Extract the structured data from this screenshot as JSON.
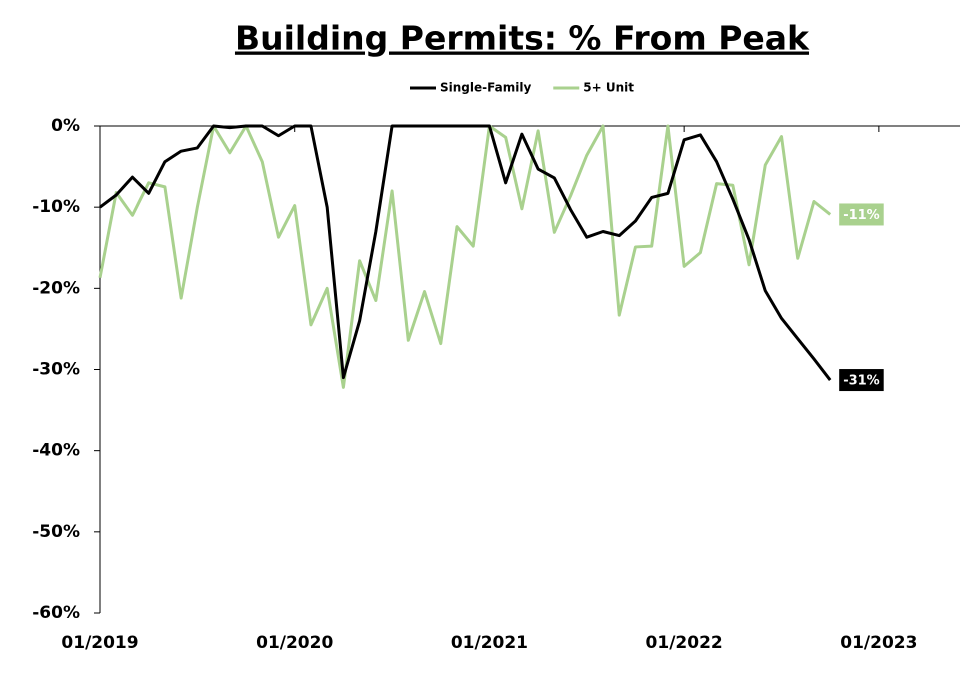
{
  "chart_data": {
    "type": "line",
    "title": "Building Permits: % From Peak",
    "x": [
      "01/2019",
      "02/2019",
      "03/2019",
      "04/2019",
      "05/2019",
      "06/2019",
      "07/2019",
      "08/2019",
      "09/2019",
      "10/2019",
      "11/2019",
      "12/2019",
      "01/2020",
      "02/2020",
      "03/2020",
      "04/2020",
      "05/2020",
      "06/2020",
      "07/2020",
      "08/2020",
      "09/2020",
      "10/2020",
      "11/2020",
      "12/2020",
      "01/2021",
      "02/2021",
      "03/2021",
      "04/2021",
      "05/2021",
      "06/2021",
      "07/2021",
      "08/2021",
      "09/2021",
      "10/2021",
      "11/2021",
      "12/2021",
      "01/2022",
      "02/2022",
      "03/2022",
      "04/2022",
      "05/2022",
      "06/2022",
      "07/2022",
      "08/2022",
      "09/2022",
      "10/2022"
    ],
    "series": [
      {
        "name": "Single-Family",
        "color": "#000000",
        "end_label": "-31%",
        "values": [
          -10,
          -8.5,
          -6.3,
          -8.3,
          -4.4,
          -3.1,
          -2.7,
          0,
          -0.2,
          0,
          0,
          -1.2,
          0,
          0,
          -10,
          -31,
          -24,
          -13,
          0,
          0,
          0,
          0,
          0,
          0,
          0,
          -7,
          -1,
          -5.3,
          -6.4,
          -10.3,
          -13.7,
          -13,
          -13.5,
          -11.7,
          -8.8,
          -8.3,
          -1.7,
          -1.1,
          -4.4,
          -9,
          -14,
          -20.3,
          -23.7,
          -26.2,
          -28.7,
          -31.3
        ]
      },
      {
        "name": "5+ Unit",
        "color": "#a9d18e",
        "end_label": "-11%",
        "values": [
          -18.7,
          -8.2,
          -11,
          -7,
          -7.5,
          -21.2,
          -10,
          0,
          -3.3,
          0,
          -4.4,
          -13.7,
          -9.8,
          -24.5,
          -20,
          -32.2,
          -16.6,
          -21.5,
          -8,
          -26.4,
          -20.4,
          -26.8,
          -12.4,
          -14.8,
          0,
          -1.4,
          -10.2,
          -0.6,
          -13.1,
          -8.6,
          -3.6,
          0,
          -23.3,
          -14.9,
          -14.8,
          0,
          -17.3,
          -15.6,
          -7.1,
          -7.3,
          -17.1,
          -4.8,
          -1.3,
          -16.3,
          -9.3,
          -10.9
        ]
      }
    ],
    "xlim": [
      "01/2019",
      "06/2023"
    ],
    "xticks": [
      "01/2019",
      "01/2020",
      "01/2021",
      "01/2022",
      "01/2023"
    ],
    "ylim": [
      -60,
      0
    ],
    "yticks": [
      {
        "value": 0,
        "label": "0%"
      },
      {
        "value": -10,
        "label": "-10%"
      },
      {
        "value": -20,
        "label": "-20%"
      },
      {
        "value": -30,
        "label": "-30%"
      },
      {
        "value": -40,
        "label": "-40%"
      },
      {
        "value": -50,
        "label": "-50%"
      },
      {
        "value": -60,
        "label": "-60%"
      }
    ],
    "grid": false,
    "legend": "top"
  }
}
